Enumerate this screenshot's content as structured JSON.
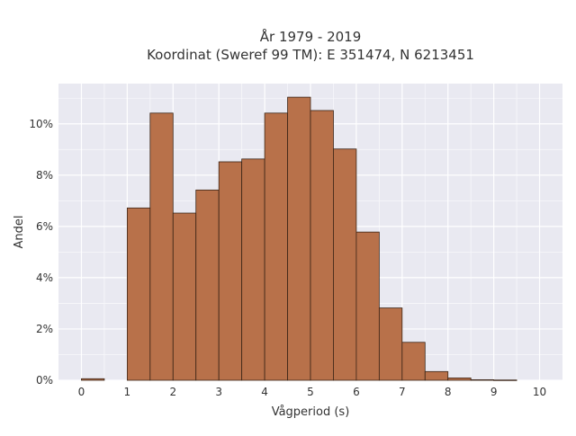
{
  "chart_data": {
    "type": "bar",
    "title_line1": "År 1979 - 2019",
    "title_line2": "Koordinat (Sweref 99 TM): E 351474, N 6213451",
    "xlabel": "Vågperiod (s)",
    "ylabel": "Andel",
    "bin_width": 0.5,
    "bins": [
      {
        "x0": 0.0,
        "x1": 0.5,
        "value": 0.0006
      },
      {
        "x0": 0.5,
        "x1": 1.0,
        "value": 0.0
      },
      {
        "x0": 1.0,
        "x1": 1.5,
        "value": 0.0672
      },
      {
        "x0": 1.5,
        "x1": 2.0,
        "value": 0.1042
      },
      {
        "x0": 2.0,
        "x1": 2.5,
        "value": 0.0652
      },
      {
        "x0": 2.5,
        "x1": 3.0,
        "value": 0.0742
      },
      {
        "x0": 3.0,
        "x1": 3.5,
        "value": 0.0852
      },
      {
        "x0": 3.5,
        "x1": 4.0,
        "value": 0.0863
      },
      {
        "x0": 4.0,
        "x1": 4.5,
        "value": 0.1042
      },
      {
        "x0": 4.5,
        "x1": 5.0,
        "value": 0.1104
      },
      {
        "x0": 5.0,
        "x1": 5.5,
        "value": 0.1052
      },
      {
        "x0": 5.5,
        "x1": 6.0,
        "value": 0.0902
      },
      {
        "x0": 6.0,
        "x1": 6.5,
        "value": 0.0578
      },
      {
        "x0": 6.5,
        "x1": 7.0,
        "value": 0.0282
      },
      {
        "x0": 7.0,
        "x1": 7.5,
        "value": 0.0148
      },
      {
        "x0": 7.5,
        "x1": 8.0,
        "value": 0.0034
      },
      {
        "x0": 8.0,
        "x1": 8.5,
        "value": 0.0009
      },
      {
        "x0": 8.5,
        "x1": 9.0,
        "value": 0.0002
      },
      {
        "x0": 9.0,
        "x1": 9.5,
        "value": 0.0001
      }
    ],
    "xlim": [
      -0.5,
      10.5
    ],
    "ylim": [
      0,
      0.1157
    ],
    "x_ticks": [
      {
        "value": 0,
        "label": "0"
      },
      {
        "value": 1,
        "label": "1"
      },
      {
        "value": 2,
        "label": "2"
      },
      {
        "value": 3,
        "label": "3"
      },
      {
        "value": 4,
        "label": "4"
      },
      {
        "value": 5,
        "label": "5"
      },
      {
        "value": 6,
        "label": "6"
      },
      {
        "value": 7,
        "label": "7"
      },
      {
        "value": 8,
        "label": "8"
      },
      {
        "value": 9,
        "label": "9"
      },
      {
        "value": 10,
        "label": "10"
      }
    ],
    "y_ticks": [
      {
        "value": 0.0,
        "label": "0%"
      },
      {
        "value": 0.02,
        "label": "2%"
      },
      {
        "value": 0.04,
        "label": "4%"
      },
      {
        "value": 0.06,
        "label": "6%"
      },
      {
        "value": 0.08,
        "label": "8%"
      },
      {
        "value": 0.1,
        "label": "10%"
      }
    ],
    "grid": true,
    "colors": {
      "bar_fill": "#b8714a",
      "bar_stroke": "#3a2416",
      "plot_background": "#e9e9f1",
      "grid_major": "#ffffff"
    }
  }
}
